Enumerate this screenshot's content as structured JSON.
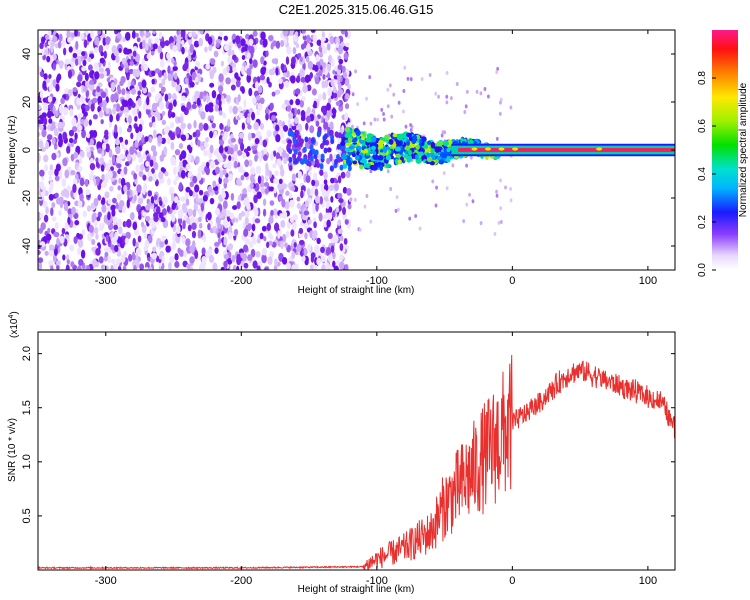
{
  "title": "C2E1.2025.315.06.46.G15",
  "colors": {
    "spectrogram_low": "#c9a8f5",
    "spectrogram_high": "#6a10e8",
    "snr_line": "#e8302e"
  },
  "chart_data": [
    {
      "type": "heatmap",
      "xlabel": "Height of straight line (km)",
      "ylabel": "Frequency (Hz)",
      "xlim": [
        -350,
        120
      ],
      "ylim": [
        -50,
        50
      ],
      "x_ticks": [
        -300,
        -200,
        -100,
        0,
        100
      ],
      "y_ticks": [
        -40,
        -20,
        0,
        20,
        40
      ],
      "colorbar": {
        "label": "Normalized spectral amplitude",
        "range": [
          0,
          1
        ],
        "ticks": [
          "0.0",
          "0.2",
          "0.4",
          "0.6",
          "0.8"
        ]
      },
      "regions": [
        {
          "name": "noise",
          "x_range": [
            -350,
            -120
          ],
          "y_range": [
            -50,
            50
          ],
          "amplitude": 0.05
        },
        {
          "name": "transition",
          "x_range": [
            -160,
            -120
          ],
          "y_range": [
            -10,
            10
          ],
          "amplitude": 0.2
        },
        {
          "name": "signal-spread",
          "x_range": [
            -120,
            -20
          ],
          "y_range": [
            -8,
            8
          ],
          "amplitude": 0.4
        },
        {
          "name": "carrier-line",
          "x_range": [
            -20,
            120
          ],
          "y_range": [
            -1,
            1
          ],
          "amplitude": 0.9
        }
      ]
    },
    {
      "type": "line",
      "xlabel": "Height of straight line (km)",
      "ylabel": "SNR (10 * v/v)",
      "y_multiplier": "(x10",
      "y_multiplier_exp": "4",
      "multiplier_close": ")",
      "xlim": [
        -350,
        120
      ],
      "ylim": [
        0,
        2.2
      ],
      "x_ticks": [
        -300,
        -200,
        -100,
        0,
        100
      ],
      "y_ticks": [
        "0.5",
        "1.0",
        "1.5",
        "2.0"
      ],
      "profile": [
        [
          -350,
          0.02
        ],
        [
          -200,
          0.02
        ],
        [
          -110,
          0.03
        ],
        [
          -100,
          0.1
        ],
        [
          -80,
          0.2
        ],
        [
          -60,
          0.35
        ],
        [
          -50,
          0.6
        ],
        [
          -40,
          0.75
        ],
        [
          -30,
          0.9
        ],
        [
          -20,
          1.05
        ],
        [
          -10,
          1.2
        ],
        [
          0,
          1.35
        ],
        [
          20,
          1.55
        ],
        [
          40,
          1.8
        ],
        [
          50,
          1.85
        ],
        [
          60,
          1.8
        ],
        [
          80,
          1.7
        ],
        [
          100,
          1.6
        ],
        [
          110,
          1.55
        ],
        [
          120,
          1.3
        ]
      ]
    }
  ]
}
